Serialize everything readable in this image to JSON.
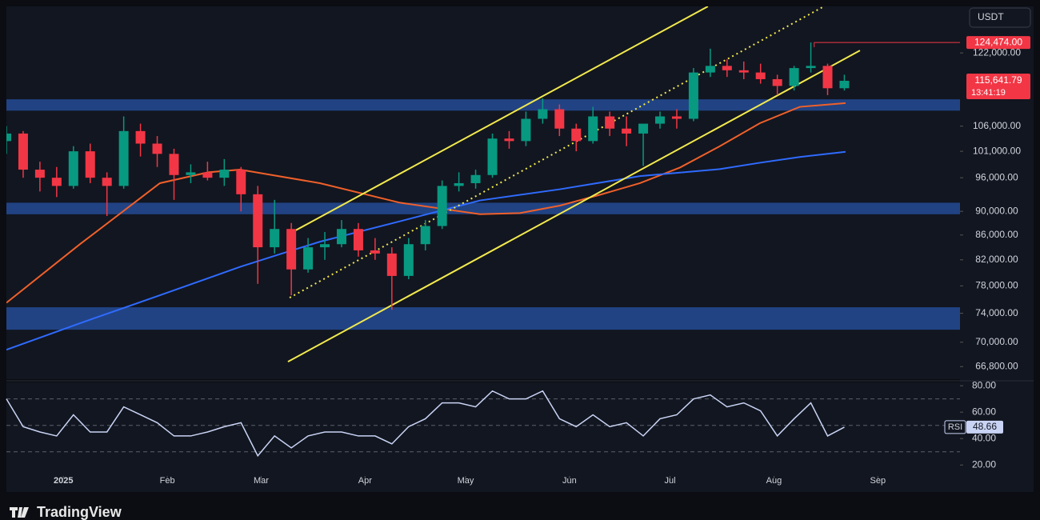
{
  "chart_data": {
    "type": "candlestick",
    "currency": "USDT",
    "brand": "TradingView",
    "xlim": [
      0,
      56.9
    ],
    "xticks": [
      {
        "value": 3.4,
        "label": "2025"
      },
      {
        "value": 9.6,
        "label": "Feb"
      },
      {
        "value": 15.2,
        "label": "Mar"
      },
      {
        "value": 21.4,
        "label": "Apr"
      },
      {
        "value": 27.4,
        "label": "May"
      },
      {
        "value": 33.6,
        "label": "Jun"
      },
      {
        "value": 39.6,
        "label": "Jul"
      },
      {
        "value": 45.8,
        "label": "Aug"
      },
      {
        "value": 52,
        "label": "Sep"
      }
    ],
    "ylim": [
      65200,
      133400
    ],
    "log_scale": true,
    "yticks": [
      {
        "value": 122000,
        "label": "122,000.00"
      },
      {
        "value": 106000,
        "label": "106,000.00"
      },
      {
        "value": 101000,
        "label": "101,000.00"
      },
      {
        "value": 96000,
        "label": "96,000.00"
      },
      {
        "value": 90000,
        "label": "90,000.00"
      },
      {
        "value": 86000,
        "label": "86,000.00"
      },
      {
        "value": 82000,
        "label": "82,000.00"
      },
      {
        "value": 78000,
        "label": "78,000.00"
      },
      {
        "value": 74000,
        "label": "74,000.00"
      },
      {
        "value": 70000,
        "label": "70,000.00"
      },
      {
        "value": 66800,
        "label": "66,800.00"
      }
    ],
    "up_color": "#089981",
    "down_color": "#f23645",
    "candles": [
      {
        "o": 103000,
        "h": 106000,
        "l": 100500,
        "c": 104500
      },
      {
        "o": 104500,
        "h": 105000,
        "l": 96000,
        "c": 97500
      },
      {
        "o": 97500,
        "h": 99000,
        "l": 93500,
        "c": 96000
      },
      {
        "o": 96000,
        "h": 98000,
        "l": 92500,
        "c": 94500
      },
      {
        "o": 94500,
        "h": 102000,
        "l": 94000,
        "c": 101000
      },
      {
        "o": 101000,
        "h": 102500,
        "l": 95000,
        "c": 96000
      },
      {
        "o": 96000,
        "h": 97000,
        "l": 89200,
        "c": 94500
      },
      {
        "o": 94500,
        "h": 108000,
        "l": 94000,
        "c": 105000
      },
      {
        "o": 105000,
        "h": 106500,
        "l": 100000,
        "c": 102500
      },
      {
        "o": 102500,
        "h": 104000,
        "l": 98000,
        "c": 100500
      },
      {
        "o": 100500,
        "h": 101500,
        "l": 92000,
        "c": 96500
      },
      {
        "o": 96500,
        "h": 98500,
        "l": 95000,
        "c": 97000
      },
      {
        "o": 97000,
        "h": 99000,
        "l": 95500,
        "c": 96000
      },
      {
        "o": 96000,
        "h": 99500,
        "l": 94500,
        "c": 97500
      },
      {
        "o": 97500,
        "h": 98000,
        "l": 90000,
        "c": 93000
      },
      {
        "o": 93000,
        "h": 94500,
        "l": 78300,
        "c": 84000
      },
      {
        "o": 84000,
        "h": 92000,
        "l": 83000,
        "c": 87000
      },
      {
        "o": 87000,
        "h": 88000,
        "l": 76600,
        "c": 80500
      },
      {
        "o": 80500,
        "h": 85500,
        "l": 80000,
        "c": 84000
      },
      {
        "o": 84000,
        "h": 86500,
        "l": 82000,
        "c": 84500
      },
      {
        "o": 84500,
        "h": 88500,
        "l": 84000,
        "c": 87000
      },
      {
        "o": 87000,
        "h": 88000,
        "l": 82500,
        "c": 83500
      },
      {
        "o": 83500,
        "h": 85500,
        "l": 82000,
        "c": 83000
      },
      {
        "o": 83000,
        "h": 84000,
        "l": 74500,
        "c": 79500
      },
      {
        "o": 79500,
        "h": 85500,
        "l": 79000,
        "c": 84500
      },
      {
        "o": 84500,
        "h": 88500,
        "l": 83500,
        "c": 87500
      },
      {
        "o": 87500,
        "h": 95500,
        "l": 87000,
        "c": 94500
      },
      {
        "o": 94500,
        "h": 97000,
        "l": 93500,
        "c": 95000
      },
      {
        "o": 95000,
        "h": 97500,
        "l": 94000,
        "c": 96500
      },
      {
        "o": 96500,
        "h": 104500,
        "l": 96000,
        "c": 103500
      },
      {
        "o": 103500,
        "h": 105000,
        "l": 101500,
        "c": 103000
      },
      {
        "o": 103000,
        "h": 109000,
        "l": 102000,
        "c": 107500
      },
      {
        "o": 107500,
        "h": 111800,
        "l": 106500,
        "c": 109500
      },
      {
        "o": 109500,
        "h": 110500,
        "l": 104000,
        "c": 105500
      },
      {
        "o": 105500,
        "h": 106500,
        "l": 101000,
        "c": 103000
      },
      {
        "o": 103000,
        "h": 110000,
        "l": 102500,
        "c": 108000
      },
      {
        "o": 108000,
        "h": 109000,
        "l": 104000,
        "c": 105500
      },
      {
        "o": 105500,
        "h": 108000,
        "l": 102000,
        "c": 104500
      },
      {
        "o": 104500,
        "h": 106000,
        "l": 98200,
        "c": 106500
      },
      {
        "o": 106500,
        "h": 109000,
        "l": 105500,
        "c": 108000
      },
      {
        "o": 108000,
        "h": 109500,
        "l": 105500,
        "c": 107500
      },
      {
        "o": 107500,
        "h": 118500,
        "l": 107000,
        "c": 117500
      },
      {
        "o": 117500,
        "h": 123000,
        "l": 116500,
        "c": 119000
      },
      {
        "o": 119000,
        "h": 120500,
        "l": 116500,
        "c": 118000
      },
      {
        "o": 118000,
        "h": 120000,
        "l": 116000,
        "c": 117500
      },
      {
        "o": 117500,
        "h": 119500,
        "l": 115000,
        "c": 116000
      },
      {
        "o": 116000,
        "h": 117000,
        "l": 112500,
        "c": 114500
      },
      {
        "o": 114500,
        "h": 119000,
        "l": 113500,
        "c": 118500
      },
      {
        "o": 118500,
        "h": 124474,
        "l": 117500,
        "c": 119000
      },
      {
        "o": 119000,
        "h": 119500,
        "l": 112500,
        "c": 114000
      },
      {
        "o": 114000,
        "h": 117000,
        "l": 113500,
        "c": 115641.79
      }
    ],
    "series": [
      {
        "color": "#f0602a",
        "x": [
          0,
          4.39,
          9.16,
          12.03,
          13.94,
          18.71,
          23.49,
          28.26,
          30.64,
          33.03,
          35.41,
          37.8,
          40.19,
          42.57,
          44.96,
          47.34,
          50.07
        ],
        "values": [
          75500,
          84500,
          95000,
          97000,
          97500,
          95000,
          91500,
          89500,
          89700,
          91000,
          92900,
          95000,
          97900,
          102000,
          106600,
          110000,
          110800
        ]
      },
      {
        "color": "#2f6bff",
        "x": [
          0,
          4.39,
          9.16,
          13.94,
          16.32,
          18.71,
          23.49,
          28.26,
          33.03,
          37.8,
          42.57,
          44.96,
          47.34,
          50.07
        ],
        "values": [
          69000,
          72600,
          76600,
          80900,
          82900,
          84900,
          88300,
          91900,
          93900,
          96300,
          97600,
          98800,
          99900,
          100900
        ]
      }
    ],
    "zone_color": "#24488f",
    "zones": [
      [
        109200,
        111600
      ],
      [
        89500,
        91500
      ],
      [
        71700,
        74860
      ]
    ],
    "channel_color": "#f2e94e",
    "channels": [
      {
        "x": [
          16.8,
          41.86
        ],
        "y": [
          86080,
          133400
        ],
        "style": "solid"
      },
      {
        "x": [
          16.8,
          50.93
        ],
        "y": [
          67430,
          122560
        ],
        "style": "solid"
      },
      {
        "x": [
          16.9,
          48.78
        ],
        "y": [
          76250,
          133400
        ],
        "style": "dotted"
      }
    ],
    "resistance": {
      "x": 48.2,
      "value": 124474,
      "label": "124,474.00",
      "color": "#f23645"
    },
    "last_price": {
      "value": 115641.79,
      "label": "115,641.79",
      "countdown": "13:41:19"
    },
    "rsi": {
      "label": "RSI",
      "color": "#c9d4f5",
      "ylim": [
        11.7,
        82.5
      ],
      "yticks": [
        {
          "value": 80,
          "label": "80.00"
        },
        {
          "value": 60,
          "label": "60.00"
        },
        {
          "value": 40,
          "label": "40.00"
        },
        {
          "value": 20,
          "label": "20.00"
        }
      ],
      "levels": [
        70,
        50,
        30
      ],
      "values": [
        70,
        49,
        45,
        42,
        58,
        45,
        45,
        64,
        58,
        52,
        42,
        42,
        45,
        49,
        52,
        27,
        42,
        33,
        42,
        45,
        45,
        42,
        42,
        36,
        49,
        55,
        67,
        67,
        64,
        76,
        70,
        70,
        76,
        55,
        49,
        58,
        49,
        52,
        42,
        55,
        58,
        70,
        73,
        64,
        67,
        61,
        42,
        55,
        67,
        42,
        48.66
      ],
      "last_label": "48.66"
    }
  }
}
